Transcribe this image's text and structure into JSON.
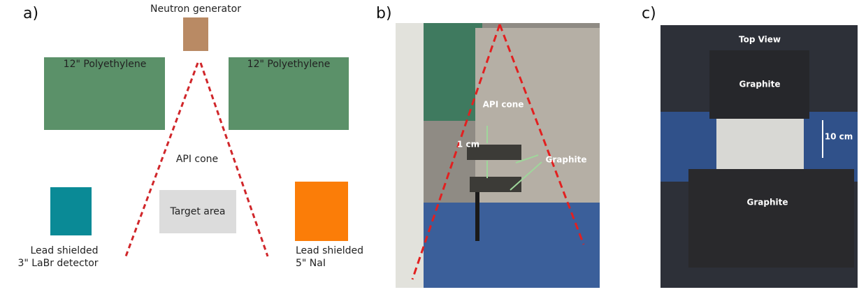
{
  "panel_a": {
    "label": "a)",
    "generator": "Neutron generator",
    "poly_left": "12\" Polyethylene",
    "poly_right": "12\" Polyethylene",
    "cone": "API cone",
    "target": "Target area",
    "left_detector": [
      "Lead shielded",
      "3\" LaBr detector"
    ],
    "right_detector": [
      "Lead shielded",
      "5\" NaI"
    ]
  },
  "panel_b": {
    "label": "b)",
    "cone": "API cone",
    "gap": "1 cm",
    "material": "Graphite"
  },
  "panel_c": {
    "label": "c)",
    "view": "Top View",
    "top_block": "Graphite",
    "distance": "10 cm",
    "bottom_block": "Graphite"
  }
}
